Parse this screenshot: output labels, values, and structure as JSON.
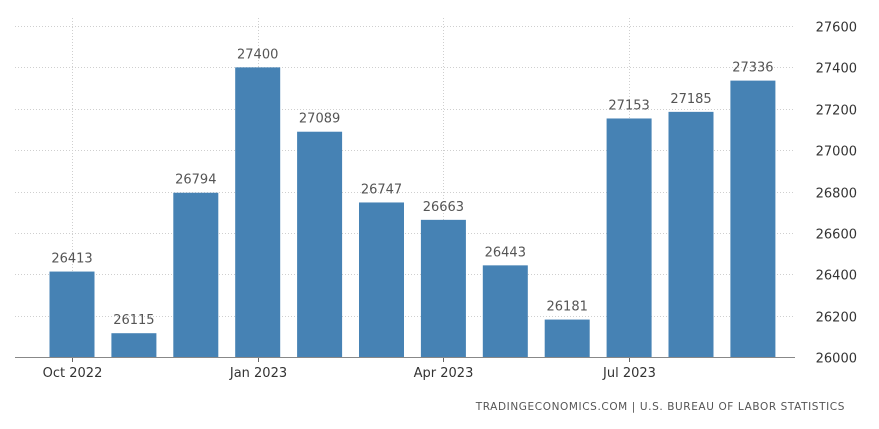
{
  "chart_data": {
    "type": "bar",
    "categories": [
      "Oct 2022",
      "Nov 2022",
      "Dec 2022",
      "Jan 2023",
      "Feb 2023",
      "Mar 2023",
      "Apr 2023",
      "May 2023",
      "Jun 2023",
      "Jul 2023",
      "Aug 2023",
      "Sep 2023"
    ],
    "values": [
      26413,
      26115,
      26794,
      27400,
      27089,
      26747,
      26663,
      26443,
      26181,
      27153,
      27185,
      27336
    ],
    "xticks": [
      {
        "index": 0,
        "label": "Oct 2022"
      },
      {
        "index": 3,
        "label": "Jan 2023"
      },
      {
        "index": 6,
        "label": "Apr 2023"
      },
      {
        "index": 9,
        "label": "Jul 2023"
      }
    ],
    "yticks": [
      26000,
      26200,
      26400,
      26600,
      26800,
      27000,
      27200,
      27400,
      27600
    ],
    "ylim": [
      26000,
      27600
    ],
    "y_axis_side": "right",
    "grid": true,
    "bar_color": "#4682b4",
    "title": "",
    "xlabel": "",
    "ylabel": ""
  },
  "source": "TRADINGECONOMICS.COM  |  U.S. BUREAU OF LABOR STATISTICS"
}
